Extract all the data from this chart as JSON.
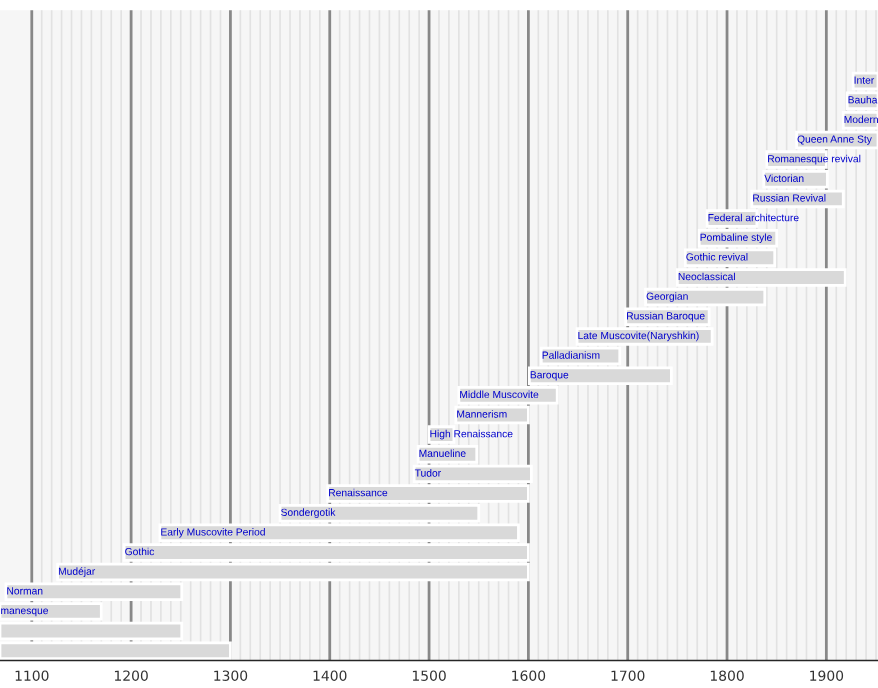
{
  "chart_data": {
    "type": "bar",
    "orientation": "horizontal",
    "tick_labels": "x",
    "grid": "x",
    "color": "#d9d9d9",
    "categories": [
      "Inter",
      "Bauha",
      "Modern",
      "Queen Anne Sty",
      "Romanesque revival",
      "Victorian",
      "Russian Revival",
      "Federal architecture",
      "Pombaline style",
      "Gothic revival",
      "Neoclassical",
      "Georgian",
      "Russian Baroque",
      "Late Muscovite(Naryshkin)",
      "Palladianism",
      "Baroque",
      "Middle Muscovite",
      "Mannerism",
      "High Renaissance",
      "Manueline",
      "Tudor",
      "Renaissance",
      "Sondergotik",
      "Early Muscovite Period",
      "Gothic",
      "Mudéjar",
      "Norman",
      "manesque",
      null,
      null
    ],
    "base": [
      1927,
      1921,
      1917,
      1870,
      1840,
      1837,
      1825,
      1780,
      1772,
      1758,
      1750,
      1718,
      1698,
      1649,
      1613,
      1601,
      1530,
      1527,
      1500,
      1489,
      1485,
      1398,
      1350,
      1229,
      1193,
      1126,
      1074,
      1068,
      1068,
      1068
    ],
    "values": [
      25,
      31,
      35,
      82,
      60,
      64,
      92,
      50,
      78,
      90,
      169,
      120,
      84,
      136,
      79,
      143,
      99,
      73,
      25,
      59,
      118,
      202,
      200,
      361,
      407,
      474,
      177,
      102,
      183,
      232
    ],
    "xlim": [
      1068,
      1952
    ],
    "xticks": [
      1100,
      {
        "value": 1110,
        "label": null
      },
      {
        "value": 1120,
        "label": null
      },
      {
        "value": 1130,
        "label": null
      },
      {
        "value": 1140,
        "label": null
      },
      {
        "value": 1150,
        "label": null
      },
      {
        "value": 1160,
        "label": null
      },
      {
        "value": 1170,
        "label": null
      },
      {
        "value": 1180,
        "label": null
      },
      {
        "value": 1190,
        "label": null
      },
      1200,
      {
        "value": 1210,
        "label": null
      },
      {
        "value": 1220,
        "label": null
      },
      {
        "value": 1230,
        "label": null
      },
      {
        "value": 1240,
        "label": null
      },
      {
        "value": 1250,
        "label": null
      },
      {
        "value": 1260,
        "label": null
      },
      {
        "value": 1270,
        "label": null
      },
      {
        "value": 1280,
        "label": null
      },
      {
        "value": 1290,
        "label": null
      },
      1300,
      {
        "value": 1310,
        "label": null
      },
      {
        "value": 1320,
        "label": null
      },
      {
        "value": 1330,
        "label": null
      },
      {
        "value": 1340,
        "label": null
      },
      {
        "value": 1350,
        "label": null
      },
      {
        "value": 1360,
        "label": null
      },
      {
        "value": 1370,
        "label": null
      },
      {
        "value": 1380,
        "label": null
      },
      {
        "value": 1390,
        "label": null
      },
      1400,
      {
        "value": 1410,
        "label": null
      },
      {
        "value": 1420,
        "label": null
      },
      {
        "value": 1430,
        "label": null
      },
      {
        "value": 1440,
        "label": null
      },
      {
        "value": 1450,
        "label": null
      },
      {
        "value": 1460,
        "label": null
      },
      {
        "value": 1470,
        "label": null
      },
      {
        "value": 1480,
        "label": null
      },
      {
        "value": 1490,
        "label": null
      },
      1500,
      {
        "value": 1510,
        "label": null
      },
      {
        "value": 1520,
        "label": null
      },
      {
        "value": 1530,
        "label": null
      },
      {
        "value": 1540,
        "label": null
      },
      {
        "value": 1550,
        "label": null
      },
      {
        "value": 1560,
        "label": null
      },
      {
        "value": 1570,
        "label": null
      },
      {
        "value": 1580,
        "label": null
      },
      {
        "value": 1590,
        "label": null
      },
      1600,
      {
        "value": 1610,
        "label": null
      },
      {
        "value": 1620,
        "label": null
      },
      {
        "value": 1630,
        "label": null
      },
      {
        "value": 1640,
        "label": null
      },
      {
        "value": 1650,
        "label": null
      },
      {
        "value": 1660,
        "label": null
      },
      {
        "value": 1670,
        "label": null
      },
      {
        "value": 1680,
        "label": null
      },
      {
        "value": 1690,
        "label": null
      },
      1700,
      {
        "value": 1710,
        "label": null
      },
      {
        "value": 1720,
        "label": null
      },
      {
        "value": 1730,
        "label": null
      },
      {
        "value": 1740,
        "label": null
      },
      {
        "value": 1750,
        "label": null
      },
      {
        "value": 1760,
        "label": null
      },
      {
        "value": 1770,
        "label": null
      },
      {
        "value": 1780,
        "label": null
      },
      {
        "value": 1790,
        "label": null
      },
      1800,
      {
        "value": 1810,
        "label": null
      },
      {
        "value": 1820,
        "label": null
      },
      {
        "value": 1830,
        "label": null
      },
      {
        "value": 1840,
        "label": null
      },
      {
        "value": 1850,
        "label": null
      },
      {
        "value": 1860,
        "label": null
      },
      {
        "value": 1870,
        "label": null
      },
      {
        "value": 1880,
        "label": null
      },
      {
        "value": 1890,
        "label": null
      },
      1900,
      {
        "value": 1910,
        "label": null
      },
      {
        "value": 1920,
        "label": null
      },
      {
        "value": 1930,
        "label": null
      },
      {
        "value": 1940,
        "label": null
      },
      {
        "value": 1950,
        "label": null
      }
    ]
  }
}
